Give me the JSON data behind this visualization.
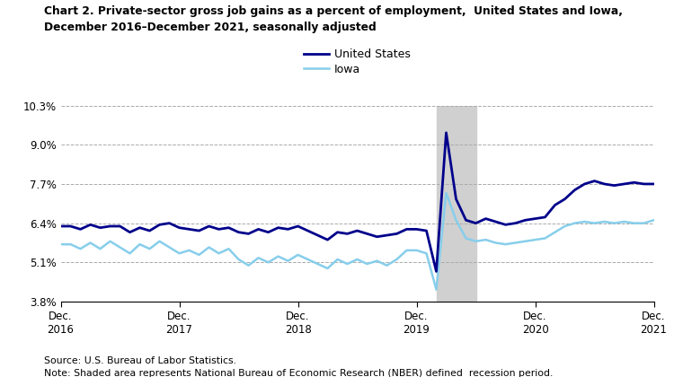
{
  "title_line1": "Chart 2. Private-sector gross job gains as a percent of employment,  United States and Iowa,",
  "title_line2": "December 2016–December 2021, seasonally adjusted",
  "source": "Source: U.S. Bureau of Labor Statistics.",
  "note": "Note: Shaded area represents National Bureau of Economic Research (NBER) defined  recession period.",
  "legend_us": "United States",
  "legend_ia": "Iowa",
  "us_color": "#00008B",
  "iowa_color": "#87CEEB",
  "recession_color": "#D0D0D0",
  "recession_start": 38,
  "recession_end": 42,
  "ylim": [
    3.8,
    10.3
  ],
  "yticks": [
    3.8,
    5.1,
    6.4,
    7.7,
    9.0,
    10.3
  ],
  "ytick_labels": [
    "3.8%",
    "5.1%",
    "6.4%",
    "7.7%",
    "9.0%",
    "10.3%"
  ],
  "xtick_positions": [
    0,
    12,
    24,
    36,
    48,
    60
  ],
  "xtick_labels": [
    "Dec.\n2016",
    "Dec.\n2017",
    "Dec.\n2018",
    "Dec.\n2019",
    "Dec.\n2020",
    "Dec.\n2021"
  ],
  "us_data": [
    6.3,
    6.3,
    6.2,
    6.35,
    6.25,
    6.3,
    6.3,
    6.1,
    6.25,
    6.15,
    6.35,
    6.4,
    6.25,
    6.2,
    6.15,
    6.3,
    6.2,
    6.25,
    6.1,
    6.05,
    6.2,
    6.1,
    6.25,
    6.2,
    6.3,
    6.15,
    6.0,
    5.85,
    6.1,
    6.05,
    6.15,
    6.05,
    5.95,
    6.0,
    6.05,
    6.2,
    6.2,
    6.15,
    4.8,
    9.4,
    7.2,
    6.5,
    6.4,
    6.55,
    6.45,
    6.35,
    6.4,
    6.5,
    6.55,
    6.6,
    7.0,
    7.2,
    7.5,
    7.7,
    7.8,
    7.7,
    7.65,
    7.7,
    7.75,
    7.7,
    7.7
  ],
  "iowa_data": [
    5.7,
    5.7,
    5.55,
    5.75,
    5.55,
    5.8,
    5.6,
    5.4,
    5.7,
    5.55,
    5.8,
    5.6,
    5.4,
    5.5,
    5.35,
    5.6,
    5.4,
    5.55,
    5.2,
    5.0,
    5.25,
    5.1,
    5.3,
    5.15,
    5.35,
    5.2,
    5.05,
    4.9,
    5.2,
    5.05,
    5.2,
    5.05,
    5.15,
    5.0,
    5.2,
    5.5,
    5.5,
    5.4,
    4.2,
    7.4,
    6.5,
    5.9,
    5.8,
    5.85,
    5.75,
    5.7,
    5.75,
    5.8,
    5.85,
    5.9,
    6.1,
    6.3,
    6.4,
    6.45,
    6.4,
    6.45,
    6.4,
    6.45,
    6.4,
    6.4,
    6.5
  ]
}
